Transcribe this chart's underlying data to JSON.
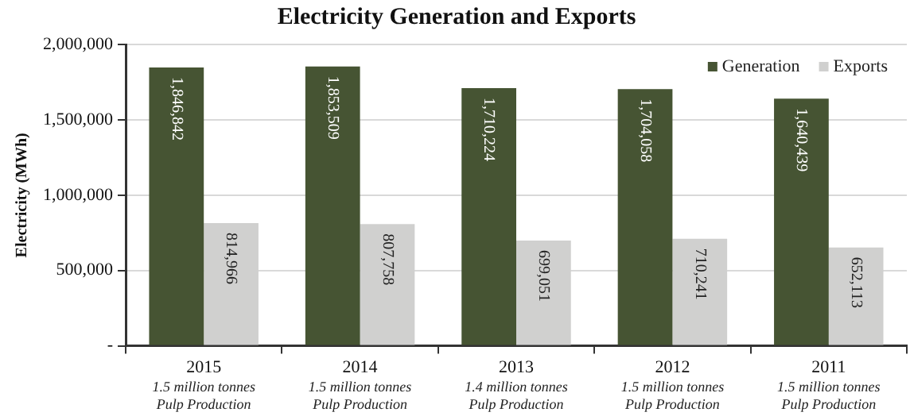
{
  "chart_data": {
    "type": "bar",
    "title": "Electricity Generation and Exports",
    "ylabel": "Electricity (MWh)",
    "categories": [
      "2015",
      "2014",
      "2013",
      "2012",
      "2011"
    ],
    "series": [
      {
        "name": "Generation",
        "color": "#465433",
        "values": [
          1846842,
          1853509,
          1710224,
          1704058,
          1640439
        ],
        "value_labels": [
          "1,846,842",
          "1,853,509",
          "1,710,224",
          "1,704,058",
          "1,640,439"
        ]
      },
      {
        "name": "Exports",
        "color": "#d0d0cf",
        "values": [
          814966,
          807758,
          699051,
          710241,
          652113
        ],
        "value_labels": [
          "814,966",
          "807,758",
          "699,051",
          "710,241",
          "652,113"
        ]
      }
    ],
    "ylim": [
      0,
      2000000
    ],
    "yticks": [
      {
        "value": 0,
        "label": "-"
      },
      {
        "value": 500000,
        "label": "500,000"
      },
      {
        "value": 1000000,
        "label": "1,000,000"
      },
      {
        "value": 1500000,
        "label": "1,500,000"
      },
      {
        "value": 2000000,
        "label": "2,000,000"
      }
    ],
    "grid": "y",
    "legend": "top right",
    "annotations": [
      "1.5 million tonnes Pulp Production",
      "1.5 million tonnes Pulp Production",
      "1.4 million tonnes Pulp Production",
      "1.5 million tonnes Pulp Production",
      "1.5 million tonnes Pulp Production"
    ]
  }
}
